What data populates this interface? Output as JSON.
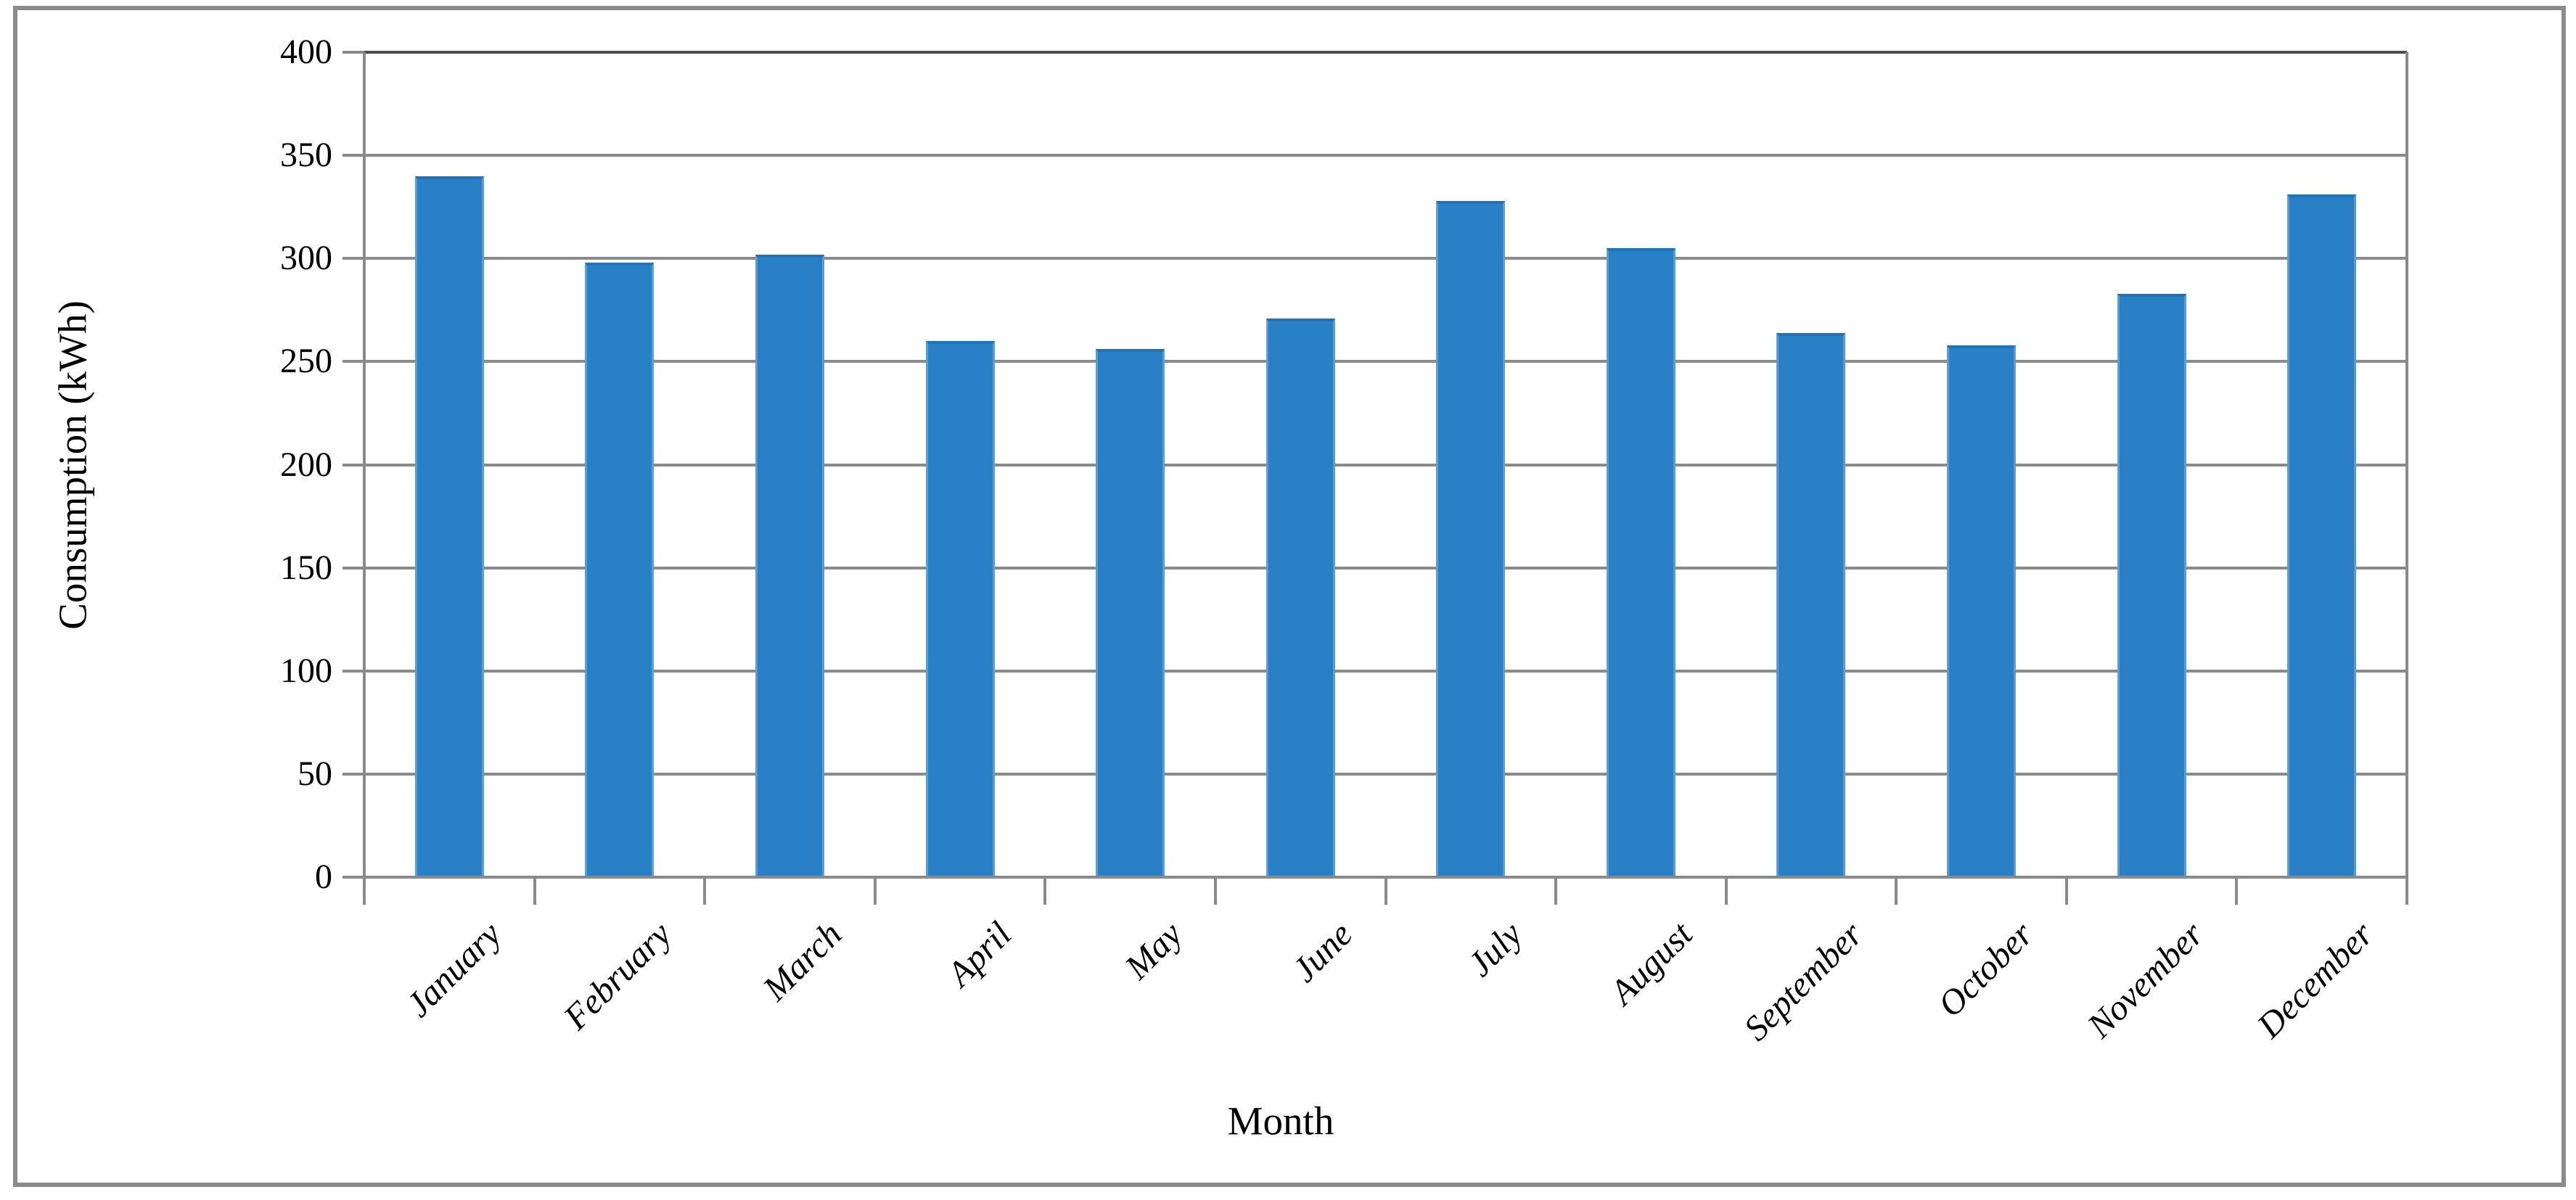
{
  "figure": {
    "background_color": "#ffffff",
    "border_color": "#8a8a8a"
  },
  "chart_data": {
    "type": "bar",
    "title": "",
    "categories": [
      "January",
      "February",
      "March",
      "April",
      "May",
      "June",
      "July",
      "August",
      "September",
      "October",
      "November",
      "December"
    ],
    "values": [
      340,
      298,
      302,
      260,
      256,
      271,
      328,
      305,
      264,
      258,
      283,
      331
    ],
    "xlabel": "Month",
    "ylabel": "Consumption (kWh)",
    "ylim": [
      0,
      400
    ],
    "ytick_step": 50,
    "yticks": [
      400,
      350,
      300,
      250,
      200,
      150,
      100,
      50,
      0
    ],
    "grid": true,
    "legend_position": "none",
    "bar_color": "#2a80c4",
    "bar_top_edge_color": "#2472b1",
    "bar_side_edge_color": "#5e9dd2",
    "gridline_color": "#8a8a8a",
    "plot_top_border_color": "#4d4d4d",
    "axis_color": "#8a8a8a",
    "text_color": "#000000"
  }
}
